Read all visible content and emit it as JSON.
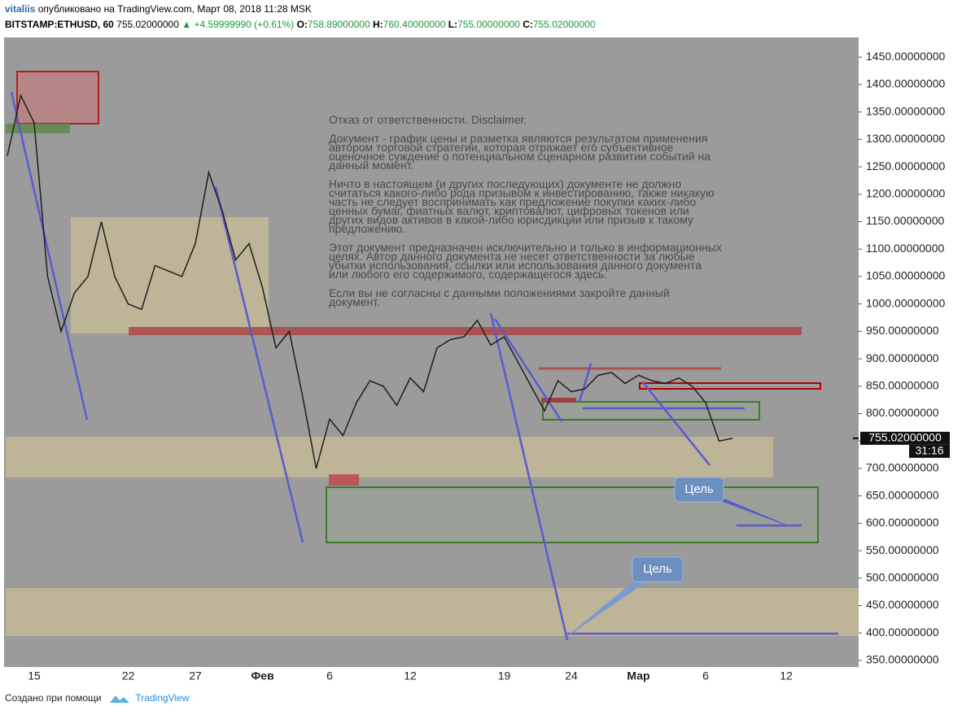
{
  "header": {
    "author": "vitaliis",
    "published": "опубликовано на TradingView.com, Март 08, 2018 11:28 MSK",
    "symbol": "BITSTAMP:ETHUSD, 60",
    "price": "755.02000000",
    "change": "▲ +4.59999990 (+0.61%)",
    "open_label": "O:",
    "open": "758.89000000",
    "high_label": "H:",
    "high": "760.40000000",
    "low_label": "L:",
    "low": "755.00000000",
    "close_label": "C:",
    "close": "755.02000000"
  },
  "disclaimer": [
    "Отказ от ответственности. Disclaimer.",
    "Документ - график цены и разметка являются результатом применения автором торговой стратегии, которая отражает его субъективное оценочное суждение о потенциальном сценарном развитии событий на данный момент.",
    "Ничто в настоящем (и других последующих) документе не должно считаться какого-либо рода призывом к инвестированию, также никакую часть не следует воспринимать как предложение покупки каких-либо ценных бумаг, фиатных валют, криптовалют, цифровых токенов или других видов активов в какой-либо юрисдикции или призыв к такому предложению.",
    "Этот документ предназначен исключительно и только в информационных целях. Автор данного документа не несет ответственности за любые убытки использования, ссылки или использования данного документа или любого его содержимого, содержащегося здесь.",
    "Если вы не согласны с данными положениями закройте данный документ."
  ],
  "annotations": [
    "Цель",
    "Цель"
  ],
  "footer": {
    "text": "Создано при помощи",
    "brand": "TradingView"
  },
  "chart_data": {
    "type": "line",
    "categories": [
      null,
      null,
      "15",
      null,
      null,
      null,
      null,
      null,
      null,
      "22",
      null,
      null,
      null,
      null,
      "27",
      null,
      null,
      null,
      null,
      "Фев",
      null,
      null,
      null,
      null,
      "6",
      null,
      null,
      null,
      null,
      null,
      "12",
      null,
      null,
      null,
      null,
      null,
      null,
      "19",
      null,
      null,
      null,
      null,
      "24",
      null,
      null,
      null,
      null,
      "Мар",
      null,
      null,
      null,
      null,
      "6",
      null,
      null,
      null,
      null,
      null,
      "12",
      null,
      null,
      null,
      null,
      null
    ],
    "series": [
      {
        "name": "ETHUSD",
        "color": "#1e1e1e",
        "values": [
          1270,
          1380,
          1330,
          1050,
          950,
          1020,
          1050,
          1150,
          1050,
          1000,
          990,
          1070,
          1060,
          1050,
          1110,
          1240,
          1170,
          1080,
          1110,
          1030,
          920,
          950,
          830,
          700,
          790,
          760,
          820,
          860,
          850,
          815,
          865,
          840,
          920,
          935,
          940,
          970,
          925,
          940,
          895,
          850,
          805,
          860,
          840,
          845,
          870,
          875,
          855,
          870,
          860,
          855,
          865,
          850,
          820,
          750,
          755,
          null,
          null,
          null,
          null,
          null,
          null,
          null,
          null,
          null
        ]
      }
    ],
    "ylim": [
      338,
      1480
    ],
    "yticks": [
      {
        "value": 350,
        "label": "350.00000000"
      },
      {
        "value": 400,
        "label": "400.00000000"
      },
      {
        "value": 450,
        "label": "450.00000000"
      },
      {
        "value": 500,
        "label": "500.00000000"
      },
      {
        "value": 550,
        "label": "550.00000000"
      },
      {
        "value": 600,
        "label": "600.00000000"
      },
      {
        "value": 650,
        "label": "650.00000000"
      },
      {
        "value": 700,
        "label": "700.00000000"
      },
      {
        "value": 750,
        "label": "750.00000000"
      },
      {
        "value": 800,
        "label": "800.00000000"
      },
      {
        "value": 850,
        "label": "850.00000000"
      },
      {
        "value": 900,
        "label": "900.00000000"
      },
      {
        "value": 950,
        "label": "950.00000000"
      },
      {
        "value": 1000,
        "label": "1000.00000000"
      },
      {
        "value": 1050,
        "label": "1050.00000000"
      },
      {
        "value": 1100,
        "label": "1100.00000000"
      },
      {
        "value": 1150,
        "label": "1150.00000000"
      },
      {
        "value": 1200,
        "label": "1200.00000000"
      },
      {
        "value": 1250,
        "label": "1250.00000000"
      },
      {
        "value": 1300,
        "label": "1300.00000000"
      },
      {
        "value": 1350,
        "label": "1350.00000000"
      },
      {
        "value": 1400,
        "label": "1400.00000000"
      },
      {
        "value": 1450,
        "label": "1450.00000000"
      }
    ],
    "last_price": {
      "value": 755.02,
      "label": "755.02000000"
    },
    "countdown": "31:16",
    "grid": false
  }
}
